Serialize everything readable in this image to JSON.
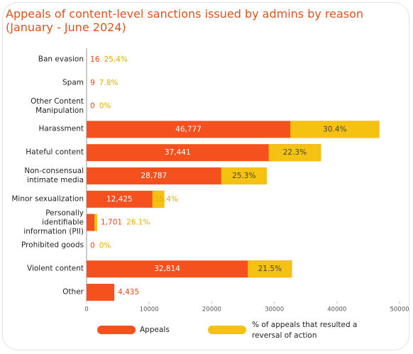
{
  "chart_data": {
    "type": "bar",
    "title": "Appeals of content-level sanctions issued by admins by reason (January - June 2024)",
    "categories": [
      "Ban evasion",
      "Spam",
      "Other Content Manipulation",
      "Harassment",
      "Hateful content",
      "Non-consensual intimate media",
      "Minor sexualization",
      "Personally identifiable information (PII)",
      "Prohibited goods",
      "Violent content",
      "Other"
    ],
    "series": [
      {
        "name": "Appeals",
        "color": "#f4511e",
        "values": [
          16,
          9,
          0,
          46777,
          37441,
          28787,
          12425,
          1701,
          0,
          32814,
          4435
        ],
        "value_labels": [
          "16",
          "9",
          "0",
          "46,777",
          "37,441",
          "28,787",
          "12,425",
          "1,701",
          "0",
          "32,814",
          "4,435"
        ]
      },
      {
        "name": "% of appeals that resulted a reversal of action",
        "color": "#f5c211",
        "values": [
          25.4,
          7.8,
          0,
          30.4,
          22.3,
          25.3,
          15.4,
          26.1,
          0,
          21.5,
          null
        ],
        "value_labels": [
          "25.4%",
          "7.8%",
          "0%",
          "30.4%",
          "22.3%",
          "25.3%",
          "15.4%",
          "26.1%",
          "0%",
          "21.5%",
          null
        ]
      }
    ],
    "xlim": [
      0,
      50000
    ],
    "xticks": [
      0,
      10000,
      20000,
      30000,
      40000,
      50000
    ]
  }
}
